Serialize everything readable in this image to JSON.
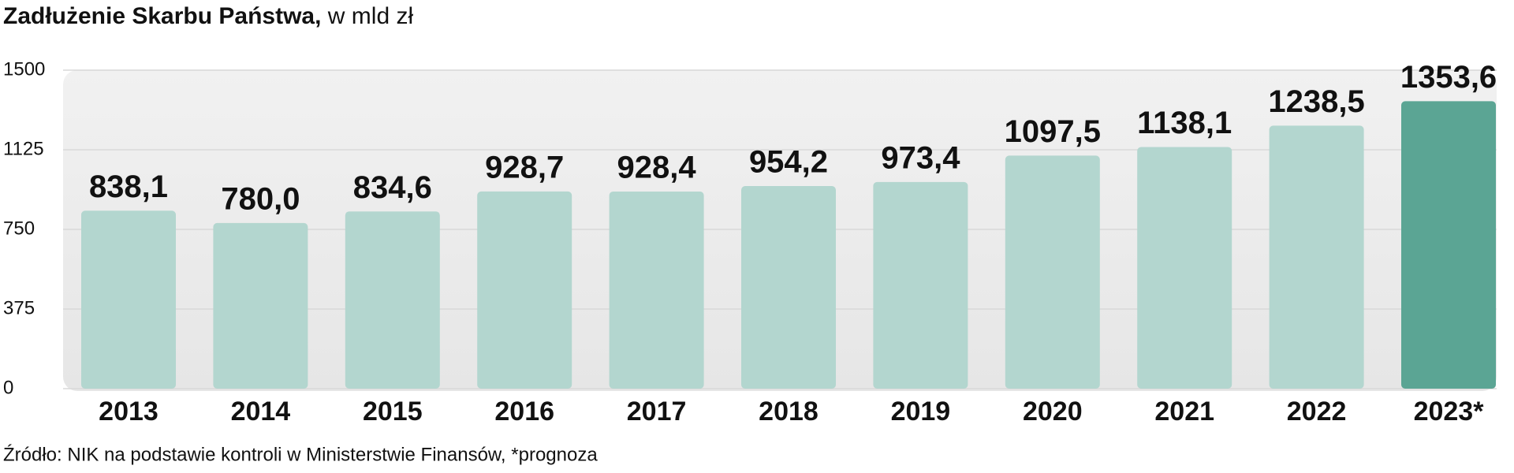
{
  "chart_data": {
    "type": "bar",
    "title": "Zadłużenie Skarbu Państwa,",
    "subtitle": "w mld zł",
    "categories": [
      "2013",
      "2014",
      "2015",
      "2016",
      "2017",
      "2018",
      "2019",
      "2020",
      "2021",
      "2022",
      "2023*"
    ],
    "values": [
      838.1,
      780.0,
      834.6,
      928.7,
      928.4,
      954.2,
      973.4,
      1097.5,
      1138.1,
      1238.5,
      1353.6
    ],
    "value_labels": [
      "838,1",
      "780,0",
      "834,6",
      "928,7",
      "928,4",
      "954,2",
      "973,4",
      "1097,5",
      "1138,1",
      "1238,5",
      "1353,6"
    ],
    "colors": [
      "#b3d6cf",
      "#b3d6cf",
      "#b3d6cf",
      "#b3d6cf",
      "#b3d6cf",
      "#b3d6cf",
      "#b3d6cf",
      "#b3d6cf",
      "#b3d6cf",
      "#b3d6cf",
      "#5ba594"
    ],
    "ylim": [
      0,
      1500
    ],
    "yticks": [
      0,
      375,
      750,
      1125,
      1500
    ],
    "grid": true,
    "source": "Źródło: NIK na podstawie kontroli w Ministerstwie Finansów, *prognoza"
  }
}
